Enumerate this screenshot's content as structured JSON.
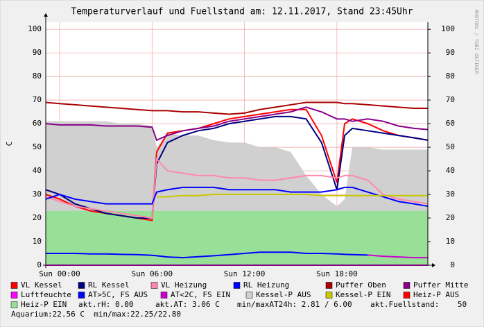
{
  "chart_data": {
    "type": "line",
    "title": "Temperaturverlauf und Fuellstand am: 12.11.2017, Stand 23:45Uhr",
    "ylabel": "C",
    "watermark": "RRDTOOL / TOBI OETIKER",
    "x": [
      -0.9,
      0,
      1,
      2,
      3,
      4,
      5,
      6,
      6.3,
      7,
      8,
      9,
      10,
      11,
      12,
      13,
      14,
      15,
      16,
      17,
      18,
      18.5,
      19,
      20,
      21,
      22,
      23,
      23.9
    ],
    "xlim": [
      -0.9,
      23.9
    ],
    "xticks": [
      {
        "value": 0,
        "label": "Sun 00:00"
      },
      {
        "value": 6,
        "label": "Sun 06:00"
      },
      {
        "value": 12,
        "label": "Sun 12:00"
      },
      {
        "value": 18,
        "label": "Sun 18:00"
      }
    ],
    "ylim": [
      0,
      103
    ],
    "yticks": [
      0,
      10,
      20,
      30,
      40,
      50,
      60,
      70,
      80,
      90,
      100
    ],
    "y2lim": [
      0,
      103
    ],
    "y2ticks": [
      0,
      10,
      20,
      30,
      40,
      50,
      60,
      70,
      80,
      90,
      100
    ],
    "grid": true,
    "series": [
      {
        "name": "Kessel-P AUS",
        "color": "#d0d0d0",
        "style": "area",
        "values": [
          61,
          61,
          61,
          61,
          61,
          60,
          60,
          59,
          50,
          56,
          55,
          55,
          53,
          52,
          52,
          50,
          50,
          48,
          38,
          30,
          25,
          28,
          50,
          50,
          49,
          49,
          49,
          49
        ]
      },
      {
        "name": "Heiz-P EIN",
        "color": "#98e098",
        "style": "area",
        "values": [
          23,
          23,
          23,
          23,
          23,
          23,
          23,
          23,
          23,
          23,
          23,
          23,
          23,
          23,
          23,
          23,
          23,
          23,
          23,
          23,
          23,
          23,
          23,
          23,
          23,
          23,
          23,
          23
        ]
      },
      {
        "name": "VL Kessel",
        "color": "#ff0000",
        "values": [
          30,
          28,
          25,
          23,
          22,
          21,
          20,
          19,
          48,
          56,
          57,
          58,
          60,
          62,
          63,
          64,
          65,
          66,
          66,
          55,
          35,
          60,
          62,
          60,
          57,
          55,
          54,
          53
        ]
      },
      {
        "name": "RL Kessel",
        "color": "#000080",
        "values": [
          32,
          30,
          26,
          24,
          22,
          21,
          20,
          20,
          43,
          52,
          55,
          57,
          58,
          60,
          61,
          62,
          63,
          63,
          62,
          52,
          32,
          55,
          58,
          57,
          56,
          55,
          54,
          53
        ]
      },
      {
        "name": "VL Heizung",
        "color": "#ff88aa",
        "values": [
          29,
          27,
          25,
          24,
          23,
          22,
          21,
          20,
          45,
          40,
          39,
          38,
          38,
          37,
          37,
          36,
          36,
          37,
          38,
          38,
          37,
          38,
          38,
          36,
          30,
          28,
          27,
          26
        ]
      },
      {
        "name": "RL Heizung",
        "color": "#0000ff",
        "values": [
          28,
          30,
          28,
          27,
          26,
          26,
          26,
          26,
          31,
          32,
          33,
          33,
          33,
          32,
          32,
          32,
          32,
          31,
          31,
          31,
          32,
          33,
          33,
          31,
          29,
          27,
          26,
          25
        ]
      },
      {
        "name": "Puffer Oben",
        "color": "#aa0000",
        "values": [
          69,
          68.5,
          68,
          67.5,
          67,
          66.5,
          66,
          65.5,
          65.5,
          65.5,
          65,
          65,
          64.5,
          64,
          64.5,
          66,
          67,
          68,
          69,
          69,
          69,
          68.5,
          68.5,
          68,
          67.5,
          67,
          66.5,
          66.5
        ]
      },
      {
        "name": "Puffer Mitte",
        "color": "#880088",
        "values": [
          60,
          59.5,
          59.5,
          59.5,
          59,
          59,
          59,
          58.5,
          53,
          55,
          57,
          58,
          59,
          61,
          62,
          63,
          64,
          65,
          67,
          65,
          62,
          62,
          61,
          62,
          61,
          59,
          58,
          57.5
        ]
      },
      {
        "name": "Luftfeuchte",
        "color": "#ff00ff",
        "values": [
          0,
          0,
          0,
          0,
          0,
          0,
          0,
          0,
          0,
          0,
          0,
          0,
          0,
          0,
          0,
          0,
          0,
          0,
          0,
          0,
          0,
          0,
          0,
          0,
          0,
          0,
          0,
          0
        ]
      },
      {
        "name": "AT>5C, FS AUS",
        "color": "#0000ff",
        "values": [
          5,
          5,
          5,
          4.8,
          4.8,
          4.6,
          4.5,
          4.2,
          4,
          3.5,
          3.2,
          3.6,
          4,
          4.5,
          5,
          5.5,
          5.5,
          5.5,
          5,
          5,
          4.8,
          4.6,
          4.5,
          4.3,
          null,
          null,
          null,
          null
        ]
      },
      {
        "name": "AT<2C, FS EIN",
        "color": "#cc00cc",
        "values": [
          null,
          null,
          null,
          null,
          null,
          null,
          null,
          null,
          null,
          null,
          null,
          null,
          null,
          null,
          null,
          null,
          null,
          null,
          null,
          null,
          null,
          null,
          null,
          4.3,
          3.8,
          3.5,
          3.2,
          3.2
        ]
      },
      {
        "name": "Kessel-P EIN",
        "color": "#c8c800",
        "values": [
          null,
          null,
          null,
          null,
          null,
          null,
          null,
          null,
          29,
          29,
          29.5,
          29.5,
          30,
          30,
          30,
          30,
          30,
          30,
          30,
          29.5,
          29.5,
          29.5,
          29.5,
          29.5,
          29.5,
          29.5,
          29.5,
          29.5
        ]
      },
      {
        "name": "Heiz-P AUS",
        "color": "#ff0000",
        "values": [
          null,
          null,
          null,
          null,
          null,
          null,
          null,
          null,
          null,
          null,
          null,
          null,
          null,
          null,
          null,
          null,
          null,
          null,
          null,
          null,
          null,
          null,
          null,
          null,
          null,
          null,
          null,
          null
        ]
      }
    ],
    "legend_order": [
      "VL Kessel",
      "RL Kessel",
      "VL Heizung",
      "RL Heizung",
      "Puffer Oben",
      "Puffer Mitte",
      "Luftfeuchte",
      "AT>5C, FS AUS",
      "AT<2C, FS EIN",
      "Kessel-P AUS",
      "Kessel-P EIN",
      "Heiz-P AUS",
      "Heiz-P EIN"
    ],
    "notes": [
      "akt.rH: 0.00",
      "akt.AT: 3.06 C",
      "min/maxAT24h: 2.81 / 6.00",
      "akt.Fuellstand:    50",
      "Aquarium:22.56 C  min/max:22.25/22.80"
    ]
  }
}
